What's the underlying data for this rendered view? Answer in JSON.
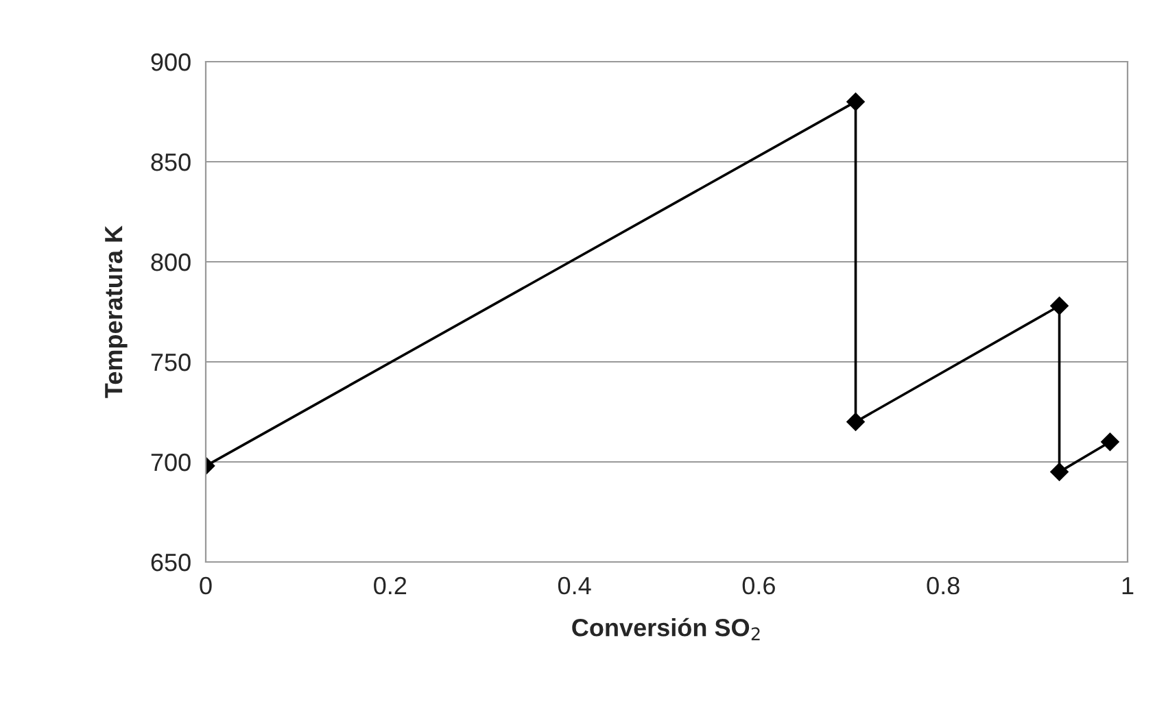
{
  "chart_data": {
    "type": "line",
    "xlabel": "Conversión SO$_{2}$",
    "ylabel": "Temperatura K",
    "series": [
      {
        "color": "#000000",
        "x": [
          0,
          0.705,
          0.705,
          0.926,
          0.926,
          0.981
        ],
        "values": [
          698,
          880,
          720,
          778,
          695,
          710
        ]
      }
    ],
    "xlim": [
      0,
      1
    ],
    "xticks": [
      0,
      0.2,
      0.4,
      0.6,
      0.8,
      1
    ],
    "ylim": [
      650,
      900
    ],
    "yticks": [
      650,
      700,
      750,
      800,
      850,
      900
    ],
    "grid": "y",
    "marker": "diamond",
    "line_style": "solid",
    "legend": false
  }
}
